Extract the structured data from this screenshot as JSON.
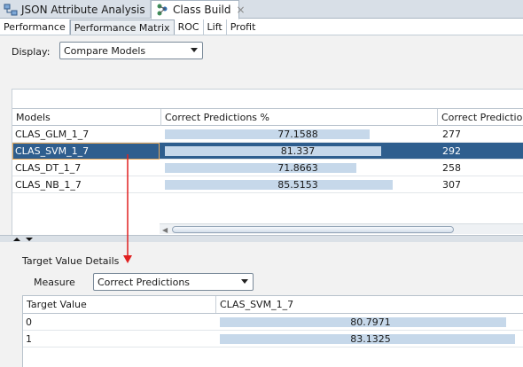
{
  "editor_tabs": [
    {
      "label": "JSON Attribute Analysis",
      "icon": "workflow-icon",
      "active": false
    },
    {
      "label": "Class Build",
      "icon": "class-build-icon",
      "active": true
    }
  ],
  "sub_tabs": [
    {
      "label": "Performance",
      "active": false
    },
    {
      "label": "Performance Matrix",
      "active": true
    },
    {
      "label": "ROC",
      "active": false
    },
    {
      "label": "Lift",
      "active": false
    },
    {
      "label": "Profit",
      "active": false
    }
  ],
  "display": {
    "label": "Display:",
    "value": "Compare Models"
  },
  "models_table": {
    "columns": [
      "Models",
      "Correct Predictions %",
      "Correct Predictions"
    ],
    "rows": [
      {
        "model": "CLAS_GLM_1_7",
        "pct": "77.1588",
        "pct_value": 77.1588,
        "count": "277",
        "selected": false
      },
      {
        "model": "CLAS_SVM_1_7",
        "pct": "81.337",
        "pct_value": 81.337,
        "count": "292",
        "selected": true
      },
      {
        "model": "CLAS_DT_1_7",
        "pct": "71.8663",
        "pct_value": 71.8663,
        "count": "258",
        "selected": false
      },
      {
        "model": "CLAS_NB_1_7",
        "pct": "85.5153",
        "pct_value": 85.5153,
        "count": "307",
        "selected": false
      }
    ]
  },
  "details": {
    "title": "Target Value Details",
    "measure_label": "Measure",
    "measure_value": "Correct Predictions",
    "columns": [
      "Target Value",
      "CLAS_SVM_1_7"
    ],
    "rows": [
      {
        "target": "0",
        "value": "80.7971",
        "value_num": 80.7971
      },
      {
        "target": "1",
        "value": "83.1325",
        "value_num": 83.1325
      }
    ]
  },
  "colors": {
    "selected_row": "#2e5e8e",
    "bar_fill": "#c6d8ea",
    "annotation_arrow": "#e02020",
    "focus_outline": "#e6a95a"
  }
}
